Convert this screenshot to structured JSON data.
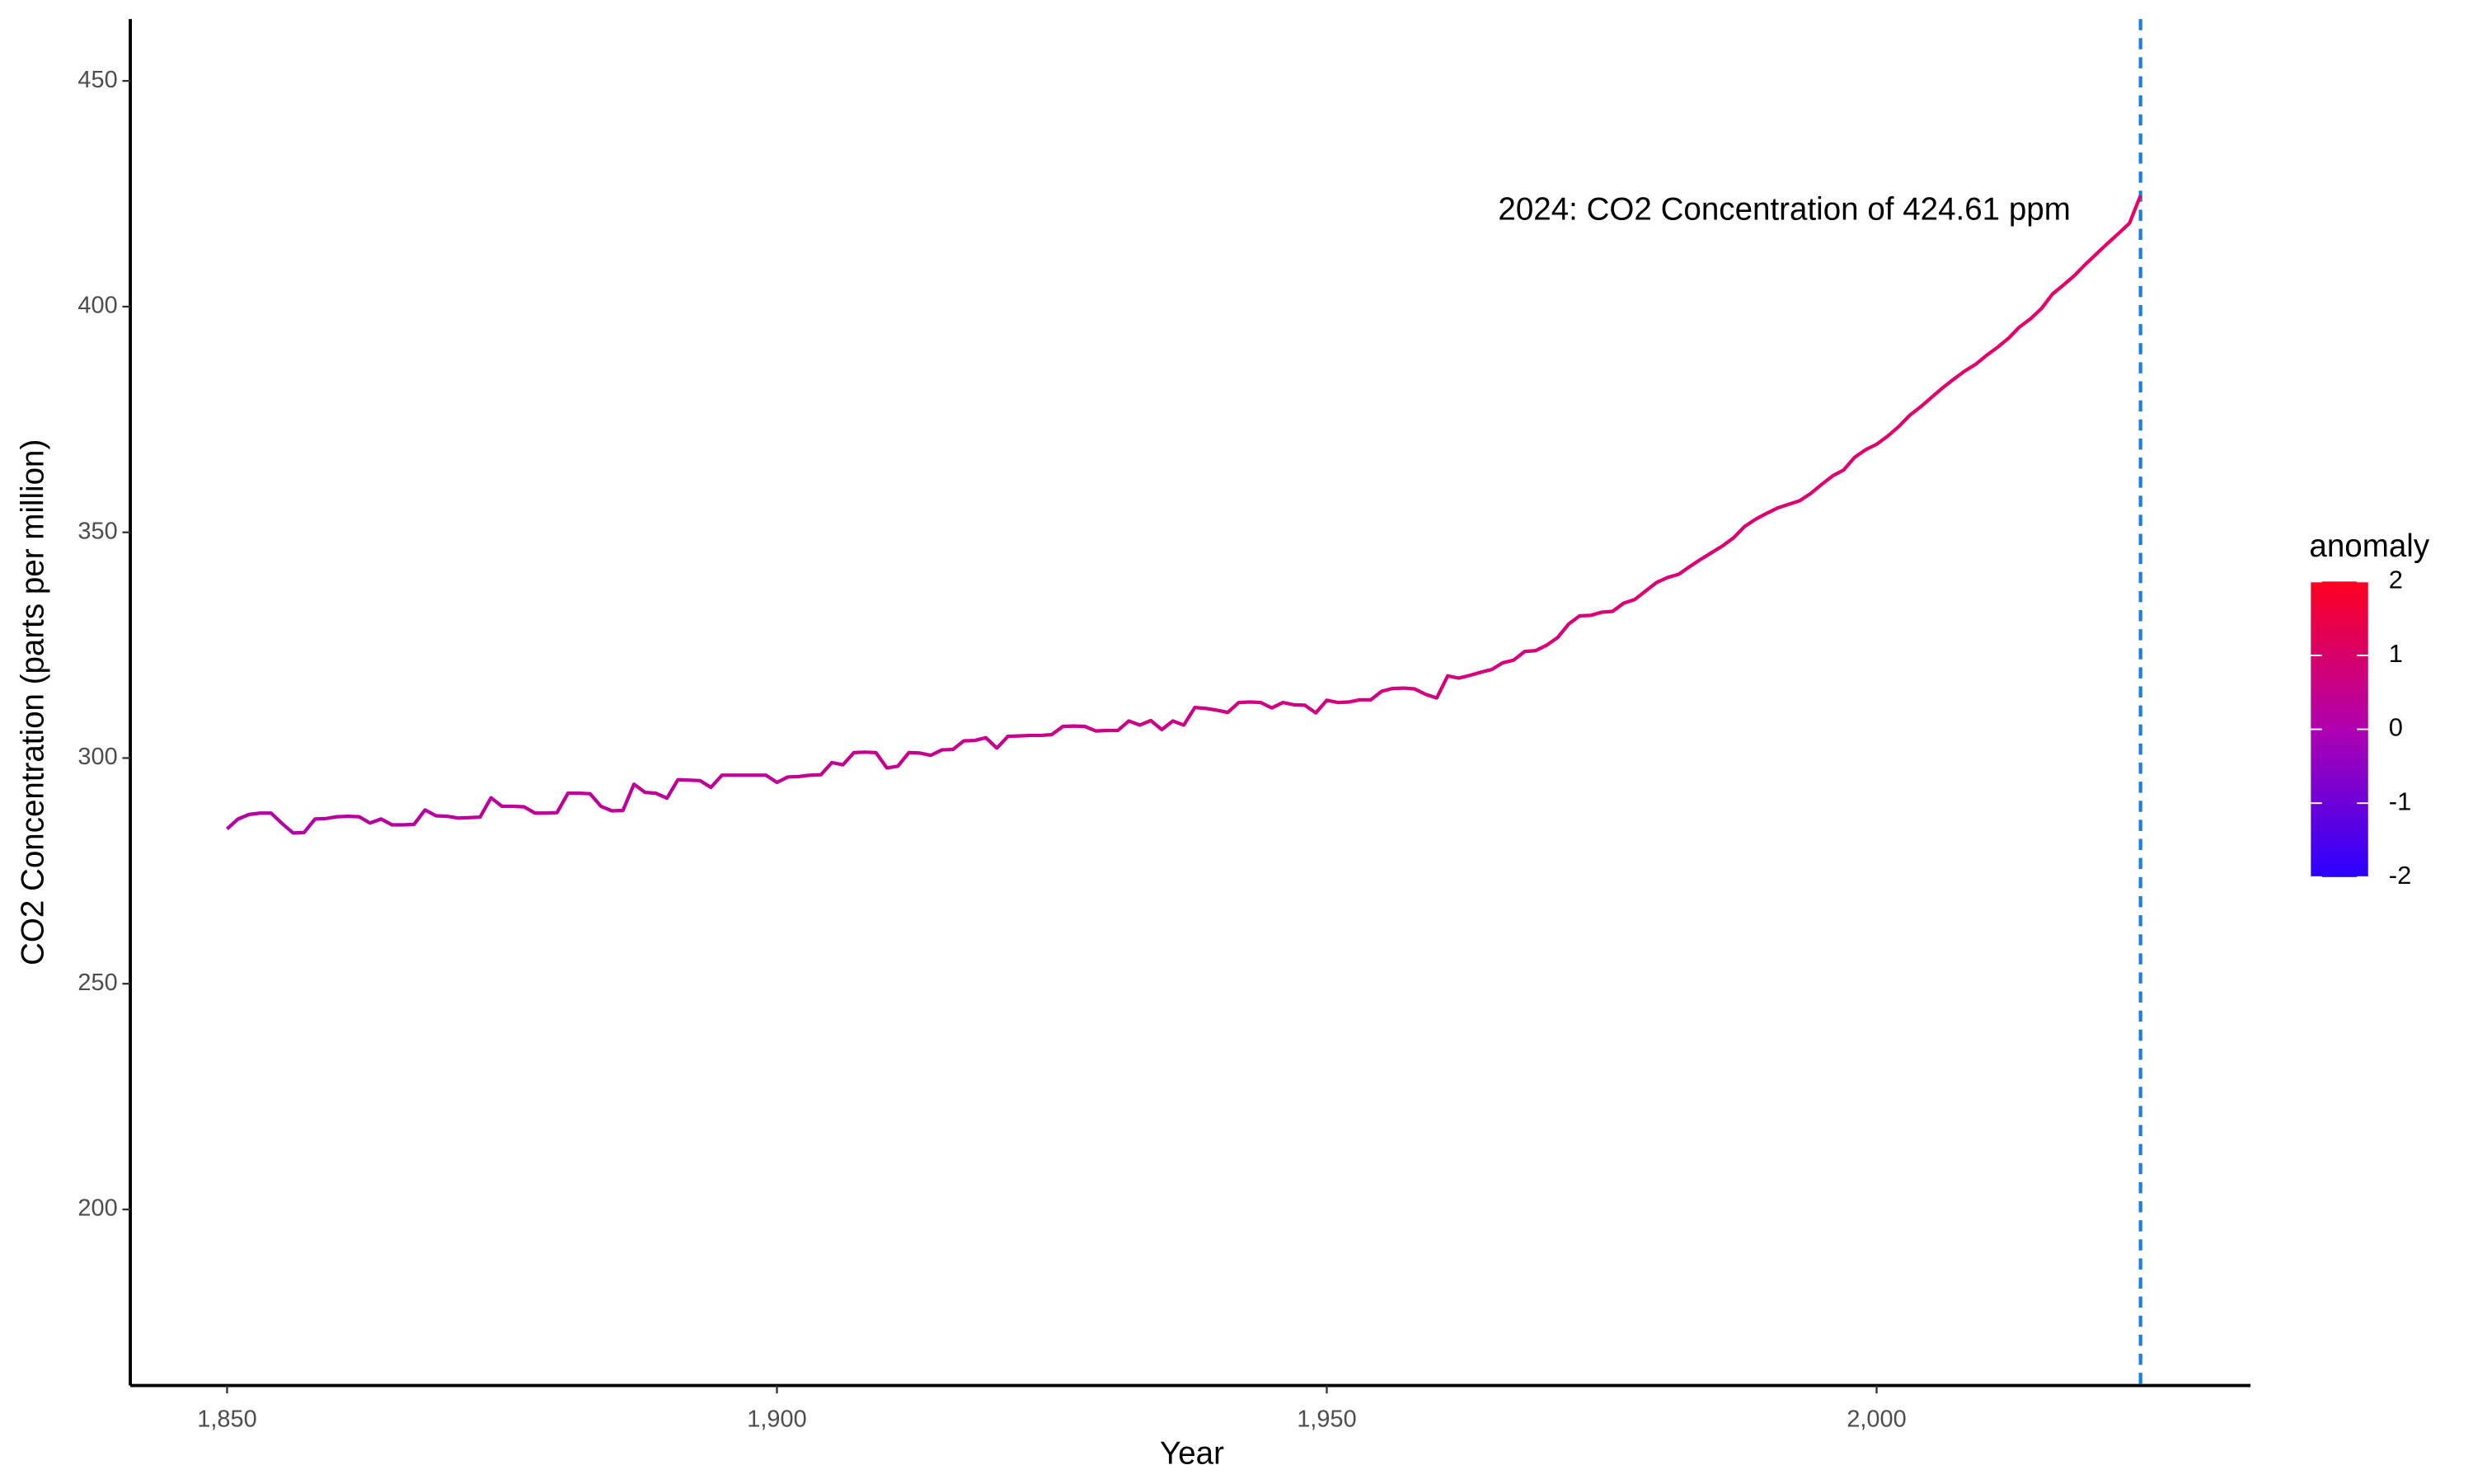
{
  "chart_data": {
    "type": "line",
    "x_label": "Year",
    "y_label": "CO2 Concentration (parts per million)",
    "annotation": "2024: CO2 Concentration of 424.61 ppm",
    "vline": 2024,
    "vline_color": "#1a7fe0",
    "line_gradient": [
      "#b300a6",
      "#e80062"
    ],
    "x": [
      1850,
      1851,
      1852,
      1853,
      1854,
      1855,
      1856,
      1857,
      1858,
      1859,
      1860,
      1861,
      1862,
      1863,
      1864,
      1865,
      1866,
      1867,
      1868,
      1869,
      1870,
      1871,
      1872,
      1873,
      1874,
      1875,
      1876,
      1877,
      1878,
      1879,
      1880,
      1881,
      1882,
      1883,
      1884,
      1885,
      1886,
      1887,
      1888,
      1889,
      1890,
      1891,
      1892,
      1893,
      1894,
      1895,
      1896,
      1897,
      1898,
      1899,
      1900,
      1901,
      1902,
      1903,
      1904,
      1905,
      1906,
      1907,
      1908,
      1909,
      1910,
      1911,
      1912,
      1913,
      1914,
      1915,
      1916,
      1917,
      1918,
      1919,
      1920,
      1921,
      1922,
      1923,
      1924,
      1925,
      1926,
      1927,
      1928,
      1929,
      1930,
      1931,
      1932,
      1933,
      1934,
      1935,
      1936,
      1937,
      1938,
      1939,
      1940,
      1941,
      1942,
      1943,
      1944,
      1945,
      1946,
      1947,
      1948,
      1949,
      1950,
      1951,
      1952,
      1953,
      1954,
      1955,
      1956,
      1957,
      1958,
      1959,
      1960,
      1961,
      1962,
      1963,
      1964,
      1965,
      1966,
      1967,
      1968,
      1969,
      1970,
      1971,
      1972,
      1973,
      1974,
      1975,
      1976,
      1977,
      1978,
      1979,
      1980,
      1981,
      1982,
      1983,
      1984,
      1985,
      1986,
      1987,
      1988,
      1989,
      1990,
      1991,
      1992,
      1993,
      1994,
      1995,
      1996,
      1997,
      1998,
      1999,
      2000,
      2001,
      2002,
      2003,
      2004,
      2005,
      2006,
      2007,
      2008,
      2009,
      2010,
      2011,
      2012,
      2013,
      2014,
      2015,
      2016,
      2017,
      2018,
      2019,
      2020,
      2021,
      2022,
      2023,
      2024
    ],
    "values": [
      284.3,
      286.5,
      287.5,
      287.8,
      287.8,
      285.5,
      283.4,
      283.5,
      286.5,
      286.6,
      287,
      287.1,
      287,
      285.6,
      286.5,
      285.2,
      285.2,
      285.3,
      288.5,
      287.2,
      287.1,
      286.7,
      286.8,
      286.9,
      291.2,
      289.3,
      289.3,
      289.2,
      287.8,
      287.8,
      287.9,
      292.2,
      292.2,
      292.1,
      289.3,
      288.3,
      288.4,
      294.2,
      292.4,
      292.2,
      291.1,
      295.2,
      295.1,
      295,
      293.5,
      296.2,
      296.2,
      296.2,
      296.2,
      296.2,
      294.6,
      295.8,
      295.9,
      296.2,
      296.3,
      299,
      298.5,
      301.2,
      301.3,
      301.2,
      297.8,
      298.2,
      301.2,
      301.1,
      300.6,
      301.8,
      301.9,
      303.8,
      303.9,
      304.5,
      302.2,
      304.8,
      304.9,
      305,
      305,
      305.2,
      307,
      307.1,
      307,
      306,
      306.1,
      306.1,
      308.2,
      307.3,
      308.3,
      306.3,
      308.2,
      307.3,
      311.2,
      311,
      310.6,
      310.1,
      312.3,
      312.4,
      312.3,
      311.1,
      312.3,
      311.8,
      311.7,
      310,
      312.8,
      312.3,
      312.4,
      312.9,
      312.9,
      314.8,
      315.4,
      315.5,
      315.3,
      314.1,
      313.3,
      318.2,
      317.7,
      318.3,
      319,
      319.6,
      321.1,
      321.7,
      323.6,
      323.8,
      325,
      326.7,
      329.7,
      331.5,
      331.6,
      332.3,
      332.5,
      334.3,
      335.1,
      337,
      338.9,
      340,
      340.7,
      342.4,
      344,
      345.5,
      347,
      348.8,
      351.3,
      352.9,
      354.2,
      355.4,
      356.2,
      357,
      358.6,
      360.6,
      362.5,
      363.8,
      366.6,
      368.3,
      369.5,
      371.3,
      373.4,
      375.9,
      377.8,
      379.9,
      382,
      383.9,
      385.7,
      387.2,
      389.2,
      391,
      393,
      395.5,
      397.3,
      399.6,
      402.8,
      404.8,
      406.9,
      409.4,
      411.7,
      414,
      416.2,
      418.5,
      424.61
    ],
    "xlim": [
      1841.2,
      2034
    ],
    "xticks": [
      {
        "value": 1850,
        "label": "1,850"
      },
      {
        "value": 1900,
        "label": "1,900"
      },
      {
        "value": 1950,
        "label": "1,950"
      },
      {
        "value": 2000,
        "label": "2,000"
      }
    ],
    "ylim": [
      161,
      463.7
    ],
    "yticks": [
      200,
      250,
      300,
      350,
      400,
      450
    ],
    "colorbar": {
      "title": "anomaly",
      "colors": [
        "#2a00ff",
        "#b000b0",
        "#ff0020"
      ],
      "lim": [
        -2,
        2
      ],
      "ticks": [
        -2,
        -1,
        0,
        1,
        2
      ]
    }
  }
}
